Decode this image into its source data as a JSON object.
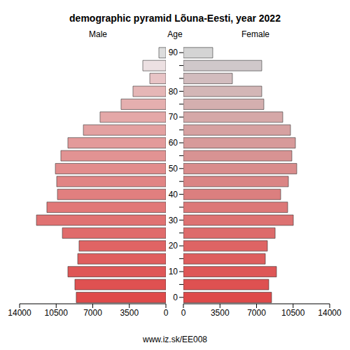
{
  "chart_data": {
    "type": "bar",
    "orientation": "horizontal",
    "title": "demographic pyramid Lõuna-Eesti, year 2022",
    "ylabel": "Age",
    "annotations": [
      "www.iz.sk/EE008"
    ],
    "categories": [
      "0",
      null,
      "10",
      null,
      "20",
      null,
      "30",
      null,
      "40",
      null,
      "50",
      null,
      "60",
      null,
      "70",
      null,
      "80",
      null,
      null,
      "90"
    ],
    "series": [
      {
        "name": "Male",
        "colors": [
          "#df4a4a",
          "#df5151",
          "#df5757",
          "#e05e5e",
          "#e06464",
          "#e06b6b",
          "#e07272",
          "#e17878",
          "#e17f7f",
          "#e18585",
          "#e28c8c",
          "#e29393",
          "#e39a9a",
          "#e3a1a1",
          "#e4a8a8",
          "#e5afaf",
          "#e5b6b6",
          "#e8c4c6",
          "#ece0e2",
          "#dddddd"
        ],
        "values": [
          8580,
          8710,
          9380,
          8440,
          8310,
          9910,
          12390,
          11390,
          10380,
          10450,
          10580,
          10050,
          9380,
          7900,
          6300,
          4290,
          3150,
          1540,
          2210,
          670
        ]
      },
      {
        "name": "Female",
        "colors": [
          "#de4a4a",
          "#de5151",
          "#de5757",
          "#de5e5e",
          "#de6464",
          "#dd6b6b",
          "#dd7272",
          "#dc7878",
          "#db7f7f",
          "#da8585",
          "#d98c8c",
          "#d89393",
          "#d79a9a",
          "#d6a1a1",
          "#d5a8a8",
          "#d4afaf",
          "#d3b6b6",
          "#d2bcbe",
          "#d0c8ca",
          "#d4d4d4"
        ],
        "values": [
          8440,
          8170,
          8910,
          7840,
          8040,
          8780,
          10520,
          9980,
          9310,
          10050,
          10850,
          10380,
          10720,
          10250,
          9510,
          7700,
          7500,
          4690,
          7500,
          2810
        ]
      }
    ],
    "xlim": [
      0,
      14000
    ],
    "xticks": [
      0,
      3500,
      7000,
      10500,
      14000
    ]
  }
}
